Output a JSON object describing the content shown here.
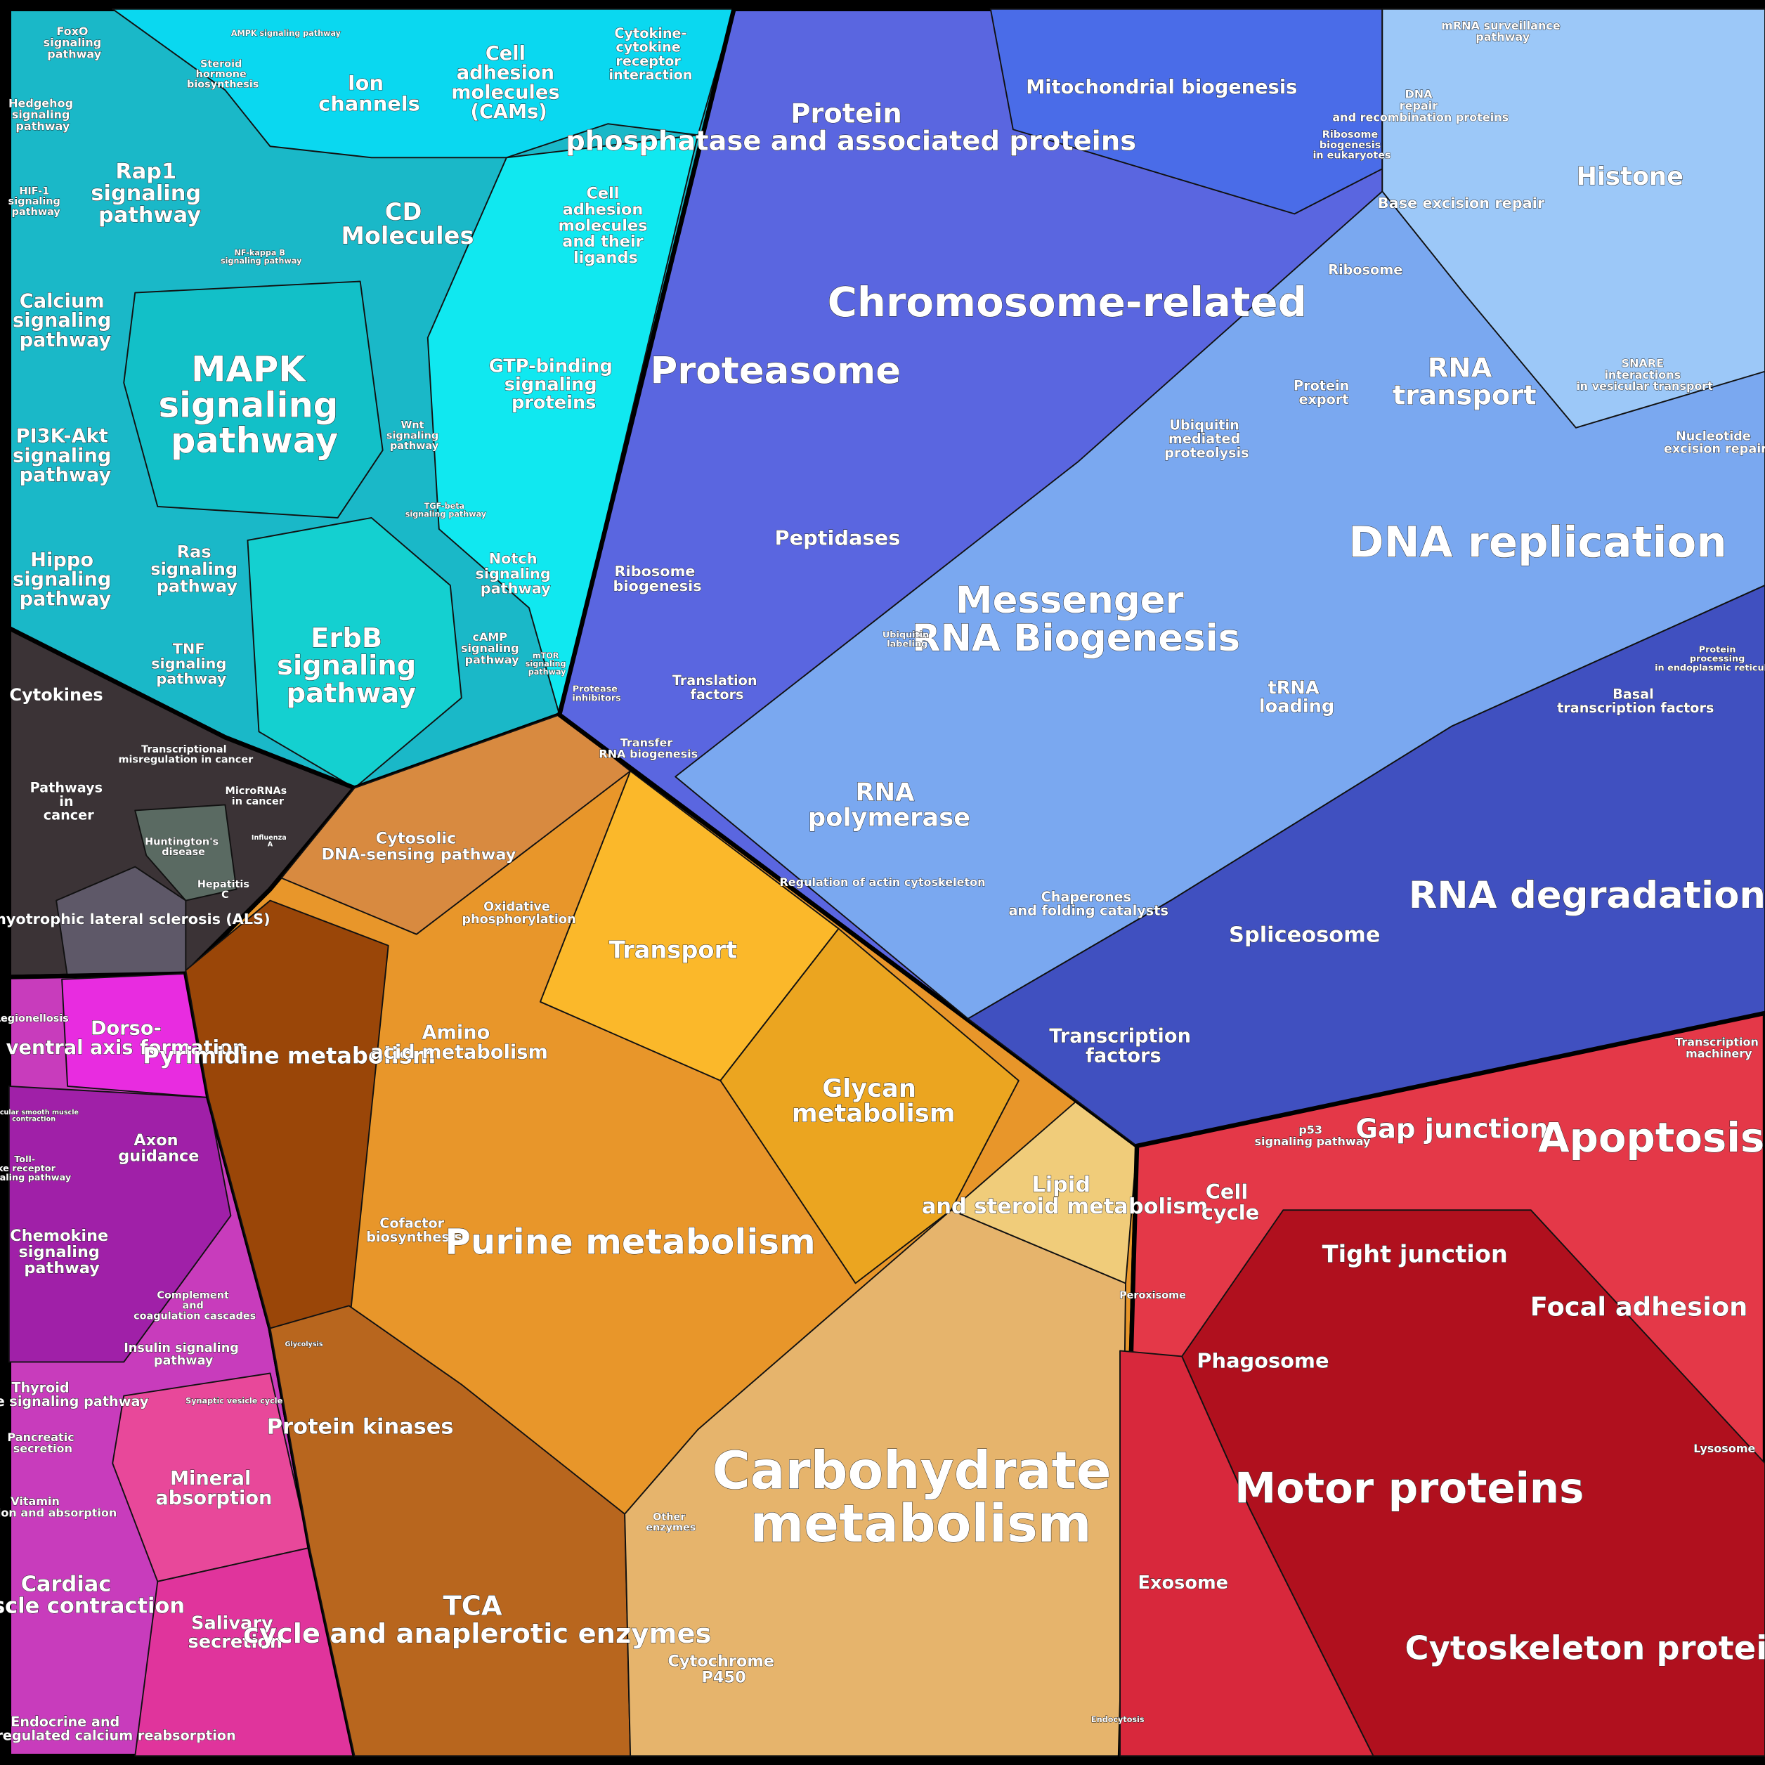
{
  "labels": [
    "FoxO signaling pathway",
    "Hedgehog signaling pathway",
    "HIF-1 signaling pathway",
    "Calcium signaling pathway",
    "PI3K-Akt signaling pathway",
    "Hippo signaling pathway",
    "Rap1 signaling pathway",
    "MAPK signaling pathway",
    "Ras signaling pathway",
    "TNF signaling pathway",
    "ErbB signaling pathway",
    "Steroid hormone biosynthesis",
    "Ion channels",
    "Cell adhesion molecules (CAMs)",
    "Cytokine-cytokine receptor interaction",
    "CD Molecules",
    "Cell adhesion molecules and their ligands",
    "GTP-binding signaling proteins",
    "Wnt signaling pathway",
    "NF-kappa B signaling pathway",
    "TGF-beta signaling pathway",
    "Notch signaling pathway",
    "cAMP signaling pathway",
    "mTOR signaling pathway",
    "AMPK signaling pathway",
    "Cytokines",
    "Pathways in cancer",
    "Transcriptional misregulation in cancer",
    "MicroRNAs in cancer",
    "Huntington's disease",
    "Hepatitis C",
    "Influenza A",
    "Amyotrophic lateral sclerosis (ALS)",
    "Legionellosis",
    "Dorso-ventral axis formation",
    "Axon guidance",
    "Chemokine signaling pathway",
    "Complement and coagulation cascades",
    "Insulin signaling pathway",
    "Thyroid hormone signaling pathway",
    "Pancreatic secretion",
    "Vitamin digestion and absorption",
    "Mineral absorption",
    "Cardiac muscle contraction",
    "Salivary secretion",
    "Endocrine and other factor-regulated calcium reabsorption",
    "Synaptic vesicle cycle",
    "Vascular smooth muscle contraction",
    "Toll-like receptor signaling pathway",
    "Cytosolic DNA-sensing pathway",
    "Oxidative phosphorylation",
    "Pyrimidine metabolism",
    "Transport",
    "Amino acid metabolism",
    "Glycan metabolism",
    "Cofactor biosynthesis",
    "Purine metabolism",
    "Lipid and steroid metabolism",
    "Protein kinases",
    "Glycolysis",
    "TCA cycle and anaplerotic enzymes",
    "Carbohydrate metabolism",
    "Other enzymes",
    "Cytochrome P450",
    "Protein phosphatase and associated proteins",
    "Mitochondrial biogenesis",
    "Ribosome biogenesis in eukaryotes",
    "mRNA surveillance pathway",
    "DNA repair and recombination proteins",
    "Base excision repair",
    "Histone",
    "Chromosome-related",
    "Ribosome",
    "Proteasome",
    "RNA transport",
    "Protein export",
    "Ubiquitin mediated proteolysis",
    "SNARE interactions in vesicular transport",
    "Nucleotide excision repair",
    "DNA replication",
    "Peptidases",
    "Ribosome biogenesis",
    "Messenger RNA Biogenesis",
    "Ubiquitin labeling",
    "Protease inhibitors",
    "Translation factors",
    "Transfer RNA biogenesis",
    "tRNA loading",
    "Protein processing in endoplasmic reticulum",
    "Basal transcription factors",
    "RNA polymerase",
    "Chaperones and folding catalysts",
    "RNA degradation",
    "Spliceosome",
    "Transcription factors",
    "Transcription machinery",
    "p53 signaling pathway",
    "Gap junction",
    "Apoptosis",
    "Cell cycle",
    "Tight junction",
    "Peroxisome",
    "Focal adhesion",
    "Phagosome",
    "Lysosome",
    "Motor proteins",
    "Exosome",
    "Cytoskeleton proteins",
    "Endocytosis",
    "Regulation of actin cytoskeleton"
  ]
}
